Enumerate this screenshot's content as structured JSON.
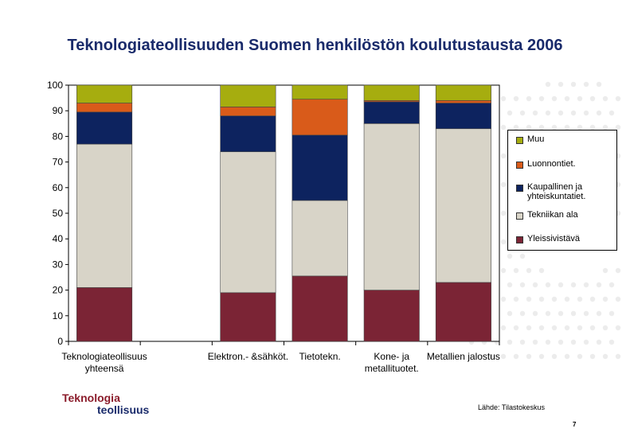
{
  "page": {
    "source": "Lähde: Tilastokeskus",
    "page_number": "7",
    "logo": {
      "line1": "Teknologia",
      "line2": "teollisuus"
    }
  },
  "colors": {
    "Yleissivistävä": "#7b2435",
    "Tekniikan ala": "#d8d4c8",
    "Kaupallinen ja yhteiskuntatiet.": "#0d235f",
    "Luonnontiet.": "#d95b1a",
    "Muu": "#a6ad0f"
  },
  "chart_data": {
    "type": "bar",
    "stacked": true,
    "title": "Teknologiateollisuuden Suomen henkilöstön koulutustausta 2006",
    "xlabel": "",
    "ylabel": "",
    "ylim": [
      0,
      100
    ],
    "yticks": [
      0,
      10,
      20,
      30,
      40,
      50,
      60,
      70,
      80,
      90,
      100
    ],
    "grid": false,
    "legend_position": "right",
    "categories": [
      "Teknologiateollisuus yhteensä",
      "",
      "Elektron.- &sähköt.",
      "Tietotekn.",
      "Kone- ja metallituotet.",
      "Metallien jalostus"
    ],
    "category_lines": [
      [
        "Teknologiateollisuus",
        "yhteensä"
      ],
      [],
      [
        "Elektron.- &sähköt."
      ],
      [
        "Tietotekn."
      ],
      [
        "Kone- ja",
        "metallituotet."
      ],
      [
        "Metallien jalostus"
      ]
    ],
    "series": [
      {
        "name": "Yleissivistävä",
        "values": [
          21,
          null,
          19,
          25.5,
          20,
          23
        ]
      },
      {
        "name": "Tekniikan ala",
        "values": [
          56,
          null,
          55,
          29.5,
          65,
          60
        ]
      },
      {
        "name": "Kaupallinen ja yhteiskuntatiet.",
        "values": [
          12.5,
          null,
          14,
          25.5,
          8.5,
          10
        ]
      },
      {
        "name": "Luonnontiet.",
        "values": [
          3.5,
          null,
          3.5,
          14,
          0.5,
          1
        ]
      },
      {
        "name": "Muu",
        "values": [
          7,
          null,
          8.5,
          5.5,
          6,
          6
        ]
      }
    ],
    "legend_order": [
      "Muu",
      "Luonnontiet.",
      "Kaupallinen ja yhteiskuntatiet.",
      "Tekniikan ala",
      "Yleissivistävä"
    ],
    "legend_lines": [
      [
        "Muu"
      ],
      [
        "Luonnontiet."
      ],
      [
        "Kaupallinen ja",
        "yhteiskuntatiet."
      ],
      [
        "Tekniikan ala"
      ],
      [
        "Yleissivistävä"
      ]
    ]
  }
}
